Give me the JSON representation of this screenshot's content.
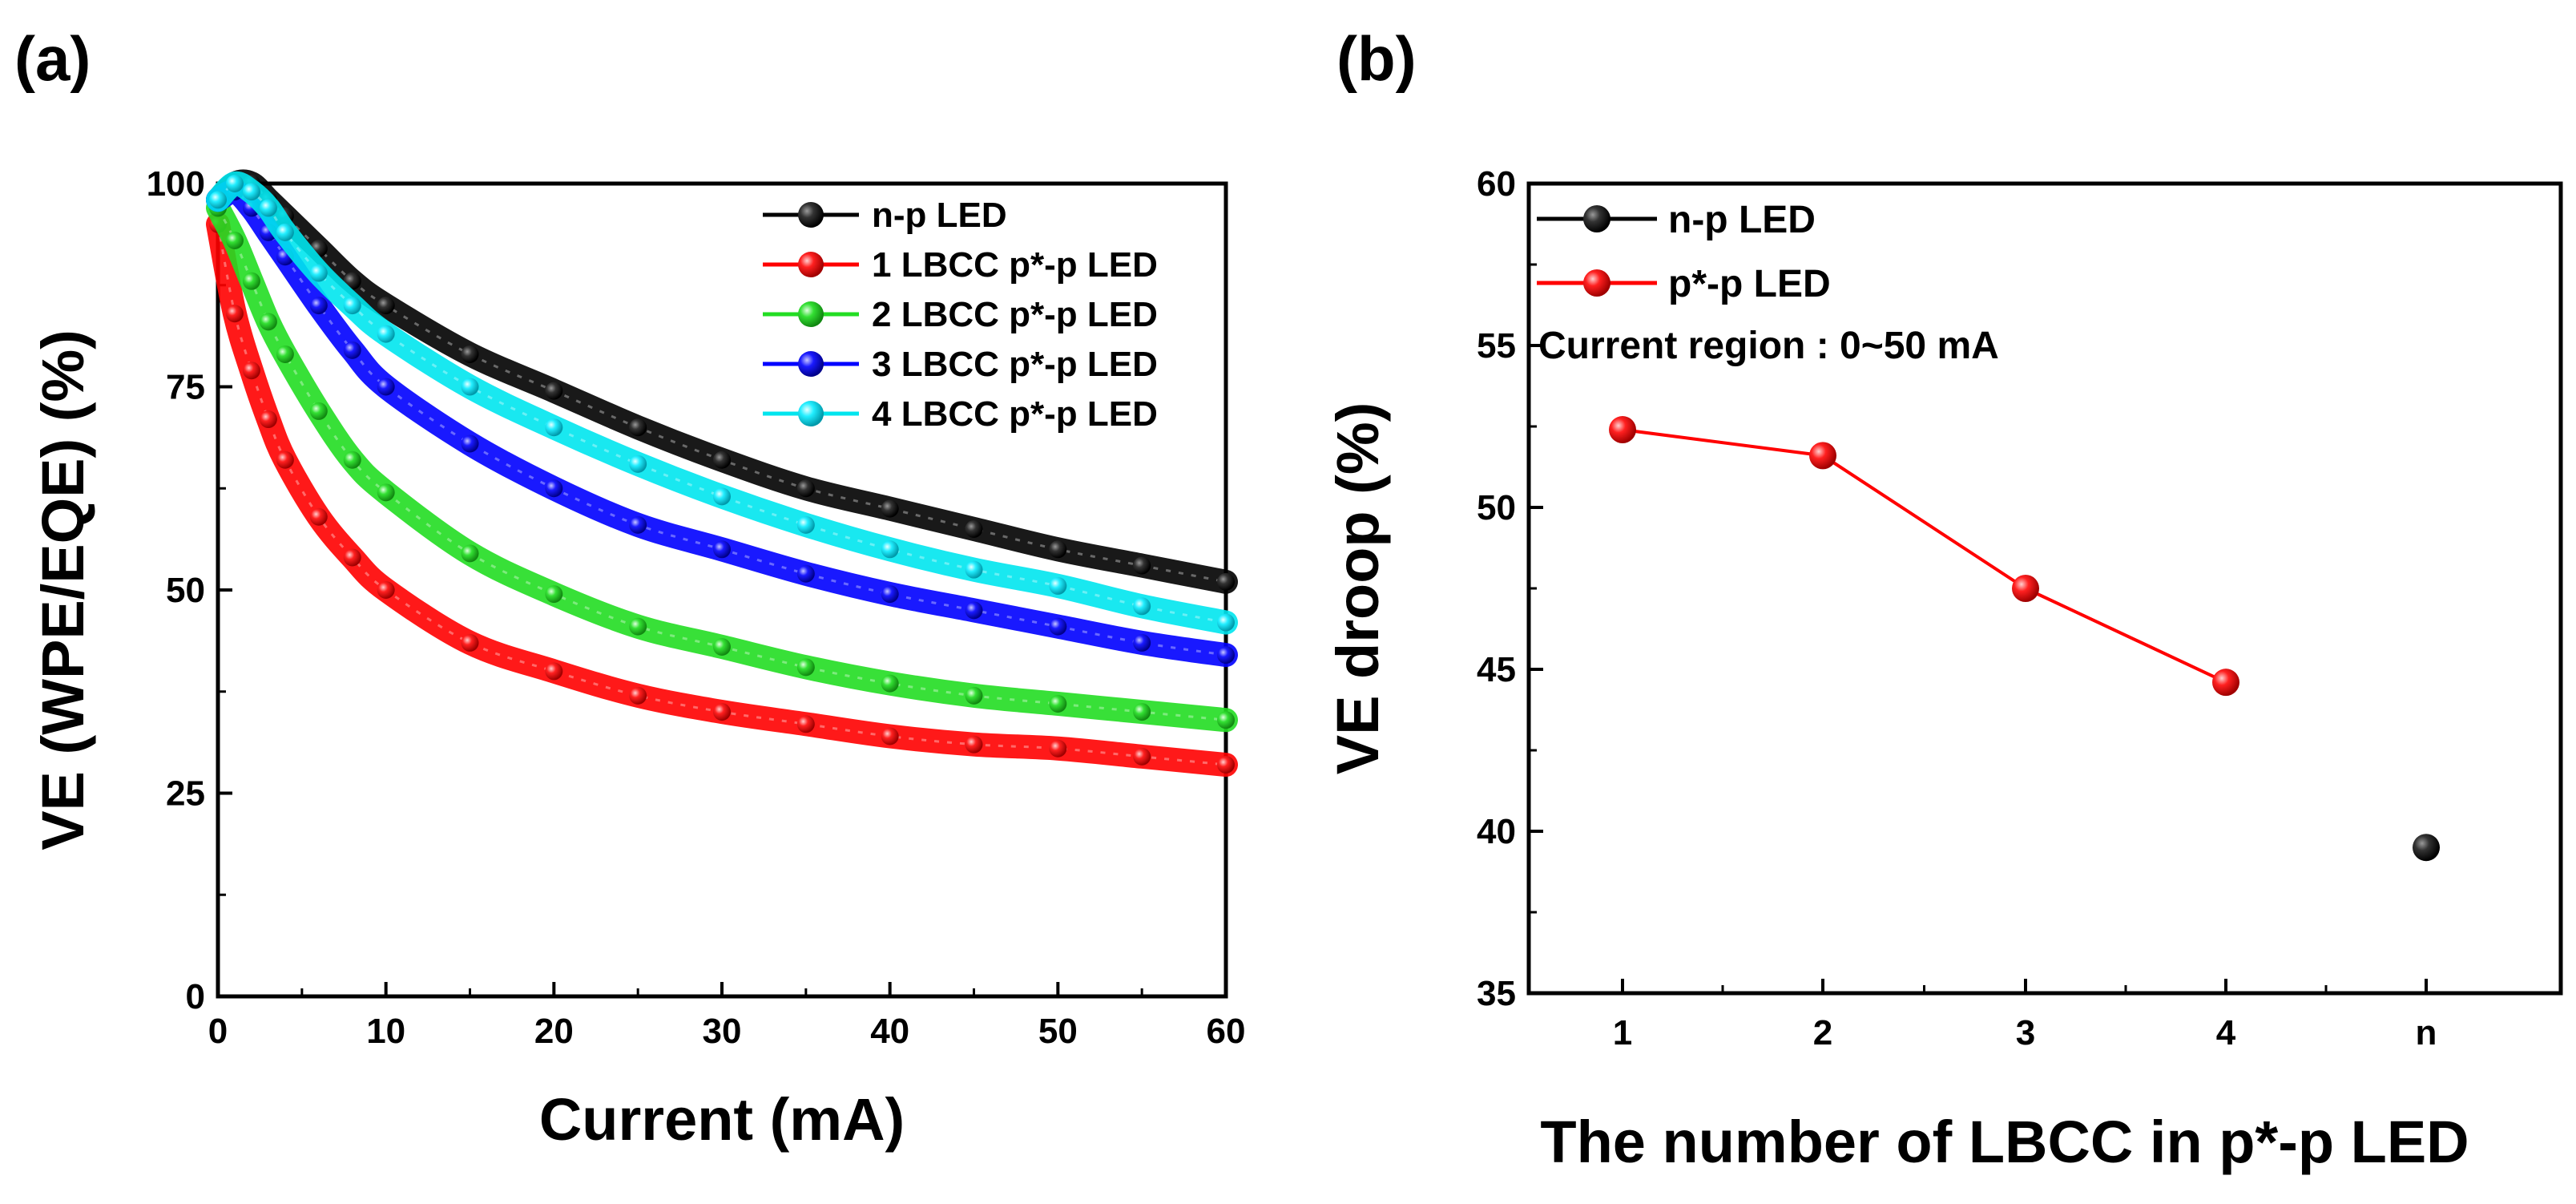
{
  "figure": {
    "panel_a_label": "(a)",
    "panel_b_label": "(b)"
  },
  "chart_data": [
    {
      "type": "line",
      "panel": "(a)",
      "xlabel": "Current (mA)",
      "ylabel": "VE (WPE/EQE) (%)",
      "xlim": [
        0,
        60
      ],
      "ylim": [
        0,
        100
      ],
      "xticks": [
        0,
        10,
        20,
        30,
        40,
        50,
        60
      ],
      "yticks": [
        0,
        25,
        50,
        75,
        100
      ],
      "legend_position": "top-right",
      "marker": "sphere",
      "x": [
        0,
        1,
        2,
        3,
        4,
        6,
        8,
        10,
        15,
        20,
        25,
        30,
        35,
        40,
        45,
        50,
        55,
        60
      ],
      "series": [
        {
          "name": "n-p LED",
          "color": "#000000",
          "values": [
            98,
            100,
            100,
            98,
            96,
            92,
            88,
            85,
            79,
            74.5,
            70,
            66,
            62.5,
            60,
            57.5,
            55,
            53,
            51
          ]
        },
        {
          "name": "1 LBCC p*-p LED",
          "color": "#ff0000",
          "values": [
            95,
            84,
            77,
            71,
            66,
            59,
            54,
            50,
            43.5,
            40,
            37,
            35,
            33.5,
            32,
            31,
            30.5,
            29.5,
            28.5
          ]
        },
        {
          "name": "2 LBCC p*-p LED",
          "color": "#22dd22",
          "values": [
            97,
            93,
            88,
            83,
            79,
            72,
            66,
            62,
            54.5,
            49.5,
            45.5,
            43,
            40.5,
            38.5,
            37,
            36,
            35,
            34
          ]
        },
        {
          "name": "3 LBCC p*-p LED",
          "color": "#0000ff",
          "values": [
            98,
            99,
            97,
            94,
            91,
            85,
            79.5,
            75,
            68,
            62.5,
            58,
            55,
            52,
            49.5,
            47.5,
            45.5,
            43.5,
            42
          ]
        },
        {
          "name": "4 LBCC p*-p LED",
          "color": "#00e5ee",
          "values": [
            98,
            100,
            99,
            97,
            94,
            89,
            85,
            81.5,
            75,
            70,
            65.5,
            61.5,
            58,
            55,
            52.5,
            50.5,
            48,
            46
          ]
        }
      ]
    },
    {
      "type": "line",
      "panel": "(b)",
      "xlabel": "The number of LBCC in p*-p LED",
      "ylabel": "VE droop (%)",
      "ylim": [
        35,
        60
      ],
      "yticks": [
        35,
        40,
        45,
        50,
        55,
        60
      ],
      "categories": [
        "1",
        "2",
        "3",
        "4",
        "n"
      ],
      "legend_position": "top-left",
      "annotation": "Current region : 0~50 mA",
      "series": [
        {
          "name": "n-p LED",
          "color": "#000000",
          "values": [
            null,
            null,
            null,
            null,
            39.5
          ]
        },
        {
          "name": "p*-p LED",
          "color": "#ff0000",
          "values": [
            52.4,
            51.6,
            47.5,
            44.6,
            null
          ]
        }
      ]
    }
  ]
}
